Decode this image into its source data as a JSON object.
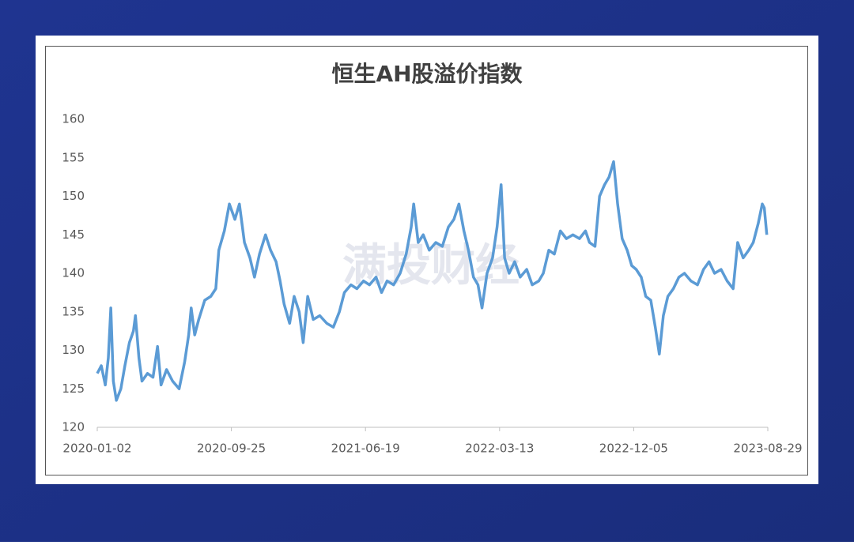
{
  "chart_data": {
    "type": "line",
    "title": "恒生AH股溢价指数",
    "watermark": "满投财经",
    "x": [
      "2020-01-02",
      "2020-01-10",
      "2020-01-18",
      "2020-01-24",
      "2020-01-29",
      "2020-02-03",
      "2020-02-09",
      "2020-02-18",
      "2020-02-26",
      "2020-03-06",
      "2020-03-14",
      "2020-03-18",
      "2020-03-25",
      "2020-03-31",
      "2020-04-11",
      "2020-04-22",
      "2020-05-01",
      "2020-05-08",
      "2020-05-19",
      "2020-05-31",
      "2020-06-13",
      "2020-06-24",
      "2020-07-02",
      "2020-07-07",
      "2020-07-14",
      "2020-07-22",
      "2020-08-03",
      "2020-08-15",
      "2020-08-25",
      "2020-08-31",
      "2020-09-11",
      "2020-09-21",
      "2020-10-02",
      "2020-10-11",
      "2020-10-21",
      "2020-11-01",
      "2020-11-10",
      "2020-11-20",
      "2020-12-02",
      "2020-12-12",
      "2020-12-23",
      "2020-12-31",
      "2021-01-08",
      "2021-01-19",
      "2021-01-28",
      "2021-02-07",
      "2021-02-15",
      "2021-02-24",
      "2021-03-07",
      "2021-03-20",
      "2021-04-03",
      "2021-04-16",
      "2021-04-28",
      "2021-05-08",
      "2021-05-21",
      "2021-06-02",
      "2021-06-15",
      "2021-06-27",
      "2021-07-10",
      "2021-07-21",
      "2021-08-01",
      "2021-08-14",
      "2021-08-27",
      "2021-09-08",
      "2021-09-18",
      "2021-09-23",
      "2021-10-02",
      "2021-10-12",
      "2021-10-24",
      "2021-11-06",
      "2021-11-19",
      "2021-12-01",
      "2021-12-12",
      "2021-12-22",
      "2022-01-01",
      "2022-01-10",
      "2022-01-20",
      "2022-01-29",
      "2022-02-06",
      "2022-02-16",
      "2022-02-27",
      "2022-03-08",
      "2022-03-16",
      "2022-03-23",
      "2022-04-01",
      "2022-04-12",
      "2022-04-23",
      "2022-05-06",
      "2022-05-17",
      "2022-05-30",
      "2022-06-08",
      "2022-06-19",
      "2022-06-30",
      "2022-07-12",
      "2022-07-24",
      "2022-08-06",
      "2022-08-19",
      "2022-08-31",
      "2022-09-08",
      "2022-09-19",
      "2022-09-28",
      "2022-10-08",
      "2022-10-17",
      "2022-10-26",
      "2022-11-03",
      "2022-11-12",
      "2022-11-22",
      "2022-12-01",
      "2022-12-10",
      "2022-12-20",
      "2022-12-29",
      "2023-01-08",
      "2023-01-17",
      "2023-01-25",
      "2023-02-02",
      "2023-02-11",
      "2023-02-22",
      "2023-03-05",
      "2023-03-16",
      "2023-03-29",
      "2023-04-11",
      "2023-04-23",
      "2023-05-04",
      "2023-05-15",
      "2023-05-28",
      "2023-06-09",
      "2023-06-21",
      "2023-06-30",
      "2023-07-11",
      "2023-07-22",
      "2023-07-31",
      "2023-08-10",
      "2023-08-18",
      "2023-08-22",
      "2023-08-27"
    ],
    "series": [
      {
        "name": "恒生AH股溢价指数",
        "color": "#5b9bd5",
        "values": [
          127,
          128,
          125.5,
          129,
          135.5,
          126,
          123.5,
          125,
          128,
          131,
          132.5,
          134.5,
          129,
          126,
          127,
          126.5,
          130.5,
          125.5,
          127.5,
          126,
          125,
          128.5,
          132,
          135.5,
          132,
          134,
          136.5,
          137,
          138,
          143,
          145.5,
          149,
          147,
          149,
          144,
          142,
          139.5,
          142.5,
          145,
          143,
          141.5,
          139,
          136,
          133.5,
          137,
          135,
          131,
          137,
          134,
          134.5,
          133.5,
          133,
          135,
          137.5,
          138.5,
          138,
          139,
          138.5,
          139.5,
          137.5,
          139,
          138.5,
          140,
          142.5,
          146,
          149,
          144,
          145,
          143,
          144,
          143.5,
          146,
          147,
          149,
          145.5,
          143,
          139.5,
          138.5,
          135.5,
          140,
          142,
          146,
          151.5,
          142,
          140,
          141.5,
          139.5,
          140.5,
          138.5,
          139,
          140,
          143,
          142.5,
          145.5,
          144.5,
          145,
          144.5,
          145.5,
          144,
          143.5,
          150,
          151.5,
          152.5,
          154.5,
          149,
          144.5,
          143,
          141,
          140.5,
          139.5,
          137,
          136.5,
          133,
          129.5,
          134.5,
          137,
          138,
          139.5,
          140,
          139,
          138.5,
          140.5,
          141.5,
          140,
          140.5,
          139,
          138,
          144,
          142,
          143,
          144,
          146.5,
          149,
          148.5,
          145
        ]
      }
    ],
    "xlim": [
      "2020-01-02",
      "2023-08-29"
    ],
    "xticks": [
      "2020-01-02",
      "2020-09-25",
      "2021-06-19",
      "2022-03-13",
      "2022-12-05",
      "2023-08-29"
    ],
    "ylim": [
      120,
      160
    ],
    "yticks": [
      120,
      125,
      130,
      135,
      140,
      145,
      150,
      155,
      160
    ],
    "grid": false
  }
}
